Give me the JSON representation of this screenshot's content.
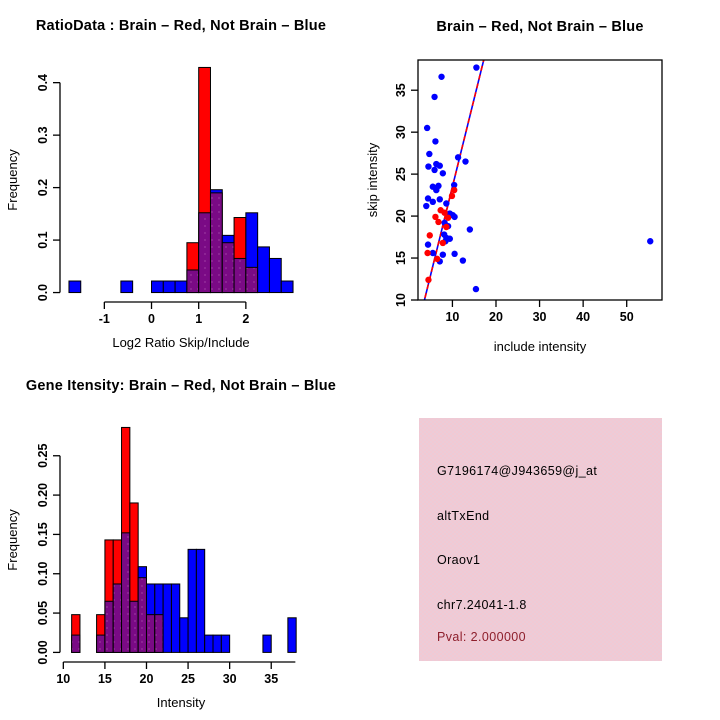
{
  "colors": {
    "brain_red": "#ff0000",
    "notbrain_blue": "#0000ff",
    "overlap_purple": "#7a0a85",
    "overlap_dot": "#b055b0",
    "axis_black": "#000000",
    "pink_panel_base": "#f2c9d3",
    "pink_panel_dot": "#d9d6e6",
    "pval_text": "#8e1f2c",
    "background": "#ffffff"
  },
  "info_panel": {
    "lines": {
      "probe_id": "G7196174@J943659@j_at",
      "event_type": "altTxEnd",
      "gene_name": "Oraov1",
      "locus": "chr7.24041-1.8",
      "pval": "Pval: 2.000000"
    }
  },
  "chart_data": [
    {
      "id": "ratio_hist",
      "type": "bar",
      "subtype": "overlaid-histogram",
      "title": "RatioData : Brain – Red, Not Brain – Blue",
      "xlabel": "Log2 Ratio Skip/Include",
      "ylabel": "Frequency",
      "legend_note": "Brain – Red, Not Brain – Blue, overlap drawn purple",
      "series": [
        {
          "name": "Brain",
          "color_key": "brain_red"
        },
        {
          "name": "Not Brain",
          "color_key": "notbrain_blue"
        }
      ],
      "bin_width": 0.25,
      "bar_format": [
        "bin_start",
        "brain_red_freq",
        "notbrain_blue_freq"
      ],
      "bars": [
        [
          -1.75,
          0,
          0.022
        ],
        [
          -0.65,
          0,
          0.022
        ],
        [
          0.0,
          0,
          0.022
        ],
        [
          0.25,
          0,
          0.022
        ],
        [
          0.5,
          0,
          0.022
        ],
        [
          0.75,
          0.095,
          0.043
        ],
        [
          1.0,
          0.429,
          0.152
        ],
        [
          1.25,
          0.19,
          0.196
        ],
        [
          1.5,
          0.095,
          0.109
        ],
        [
          1.75,
          0.143,
          0.065
        ],
        [
          2.0,
          0.048,
          0.152
        ],
        [
          2.25,
          0,
          0.087
        ],
        [
          2.5,
          0,
          0.065
        ],
        [
          2.75,
          0,
          0.022
        ]
      ],
      "xlim": [
        -1.94,
        3.19
      ],
      "ylim": [
        -0.018,
        0.447
      ],
      "xticks": [
        -1,
        0,
        1,
        2
      ],
      "xtick_labels": [
        "-1",
        "0",
        "1",
        "2"
      ],
      "yticks": [
        0,
        0.1,
        0.2,
        0.3,
        0.4
      ],
      "ytick_labels": [
        "0.0",
        "0.1",
        "0.2",
        "0.3",
        "0.4"
      ],
      "x_axis_span": [
        -1,
        2
      ],
      "y_axis_span": [
        0,
        0.4
      ],
      "grid": false
    },
    {
      "id": "scatter",
      "type": "scatter",
      "title": "Brain – Red, Not Brain – Blue",
      "xlabel": "include intensity",
      "ylabel": "skip intensity",
      "series": [
        {
          "name": "Brain",
          "color_key": "brain_red"
        },
        {
          "name": "Not Brain",
          "color_key": "notbrain_blue"
        }
      ],
      "xlim": [
        2.1,
        58.1
      ],
      "ylim": [
        10,
        38.6
      ],
      "xticks": [
        10,
        20,
        30,
        40,
        50
      ],
      "xtick_labels": [
        "10",
        "20",
        "30",
        "40",
        "50"
      ],
      "yticks": [
        10,
        15,
        20,
        25,
        30,
        35
      ],
      "ytick_labels": [
        "10",
        "15",
        "20",
        "25",
        "30",
        "35"
      ],
      "blue_points": [
        [
          15.5,
          37.7
        ],
        [
          7.5,
          36.6
        ],
        [
          5.9,
          34.2
        ],
        [
          4.2,
          30.5
        ],
        [
          6.1,
          28.9
        ],
        [
          4.7,
          27.4
        ],
        [
          11.3,
          27.0
        ],
        [
          13.0,
          26.5
        ],
        [
          4.5,
          25.9
        ],
        [
          6.3,
          26.2
        ],
        [
          7.1,
          26.0
        ],
        [
          5.9,
          25.5
        ],
        [
          7.8,
          25.1
        ],
        [
          5.5,
          23.5
        ],
        [
          6.3,
          23.1
        ],
        [
          6.8,
          23.6
        ],
        [
          10.4,
          23.7
        ],
        [
          4.4,
          22.1
        ],
        [
          5.5,
          21.7
        ],
        [
          7.1,
          22.0
        ],
        [
          4.0,
          21.2
        ],
        [
          8.6,
          21.5
        ],
        [
          9.4,
          20.3
        ],
        [
          10.1,
          20.1
        ],
        [
          10.5,
          19.9
        ],
        [
          8.2,
          19.2
        ],
        [
          9.0,
          18.8
        ],
        [
          14.0,
          18.4
        ],
        [
          8.1,
          17.8
        ],
        [
          8.6,
          17.4
        ],
        [
          8.4,
          17.0
        ],
        [
          9.4,
          17.3
        ],
        [
          4.4,
          16.6
        ],
        [
          55.4,
          17.0
        ],
        [
          5.5,
          15.6
        ],
        [
          7.8,
          15.4
        ],
        [
          10.5,
          15.5
        ],
        [
          12.4,
          14.7
        ],
        [
          7.1,
          14.6
        ],
        [
          15.4,
          11.3
        ]
      ],
      "red_points": [
        [
          7.3,
          20.7
        ],
        [
          8.2,
          20.4
        ],
        [
          9.0,
          19.8
        ],
        [
          6.1,
          19.9
        ],
        [
          6.8,
          19.3
        ],
        [
          9.9,
          22.4
        ],
        [
          10.4,
          23.1
        ],
        [
          4.8,
          17.7
        ],
        [
          7.8,
          16.8
        ],
        [
          4.3,
          15.6
        ],
        [
          6.5,
          14.9
        ],
        [
          4.5,
          12.4
        ],
        [
          8.6,
          18.7
        ]
      ],
      "fit_line": {
        "x1": 3.2,
        "y1": 9.2,
        "x2": 17.8,
        "y2": 39.9,
        "style": "solid blue with red dashed overlay"
      },
      "grid": false,
      "box": true
    },
    {
      "id": "gene_hist",
      "type": "bar",
      "subtype": "overlaid-histogram",
      "title": "Gene Itensity: Brain – Red, Not Brain – Blue",
      "xlabel": "Intensity",
      "ylabel": "Frequency",
      "series": [
        {
          "name": "Brain",
          "color_key": "brain_red"
        },
        {
          "name": "Not Brain",
          "color_key": "notbrain_blue"
        }
      ],
      "bin_width": 1,
      "bar_format": [
        "bin_start",
        "brain_red_freq",
        "notbrain_blue_freq"
      ],
      "bars": [
        [
          11,
          0.048,
          0.022
        ],
        [
          14,
          0.048,
          0.022
        ],
        [
          15,
          0.143,
          0.065
        ],
        [
          16,
          0.143,
          0.087
        ],
        [
          17,
          0.286,
          0.152
        ],
        [
          18,
          0.19,
          0.065
        ],
        [
          19,
          0.095,
          0.109
        ],
        [
          20,
          0.048,
          0.087
        ],
        [
          21,
          0.048,
          0.087
        ],
        [
          22,
          0,
          0.087
        ],
        [
          23,
          0,
          0.087
        ],
        [
          24,
          0,
          0.044
        ],
        [
          25,
          0,
          0.131
        ],
        [
          26,
          0,
          0.131
        ],
        [
          27,
          0,
          0.022
        ],
        [
          28,
          0,
          0.022
        ],
        [
          29,
          0,
          0.022
        ],
        [
          34,
          0,
          0.022
        ],
        [
          37,
          0,
          0.044
        ]
      ],
      "xlim": [
        9.6,
        38.7
      ],
      "ylim": [
        -0.0122,
        0.298
      ],
      "xticks": [
        10,
        15,
        20,
        25,
        30,
        35
      ],
      "xtick_labels": [
        "10",
        "15",
        "20",
        "25",
        "30",
        "35"
      ],
      "yticks": [
        0,
        0.05,
        0.1,
        0.15,
        0.2,
        0.25
      ],
      "ytick_labels": [
        "0.00",
        "0.05",
        "0.10",
        "0.15",
        "0.20",
        "0.25"
      ],
      "x_axis_span": [
        10,
        37.9
      ],
      "y_axis_span": [
        0,
        0.25
      ],
      "grid": false
    }
  ]
}
